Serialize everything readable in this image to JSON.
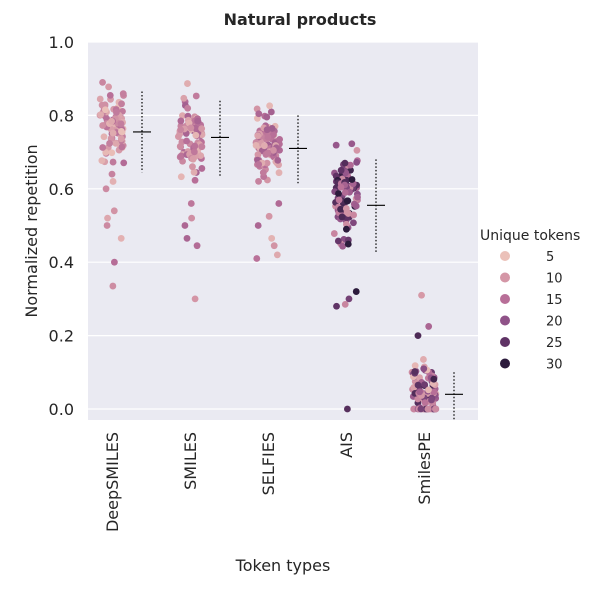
{
  "chart_data": {
    "type": "strip",
    "title": "Natural products",
    "xlabel": "Token types",
    "ylabel": "Normalized repetition",
    "ylim": [
      -0.03,
      1.0
    ],
    "yticks": [
      0.0,
      0.2,
      0.4,
      0.6,
      0.8,
      1.0
    ],
    "ytick_labels": [
      "0.0",
      "0.2",
      "0.4",
      "0.6",
      "0.8",
      "1.0"
    ],
    "grid": true,
    "categories": [
      "DeepSMILES",
      "SMILES",
      "SELFIES",
      "AIS",
      "SmilesPE"
    ],
    "summary": [
      {
        "category": "DeepSMILES",
        "mean": 0.755,
        "lower": 0.645,
        "upper": 0.865
      },
      {
        "category": "SMILES",
        "mean": 0.74,
        "lower": 0.635,
        "upper": 0.84
      },
      {
        "category": "SELFIES",
        "mean": 0.71,
        "lower": 0.615,
        "upper": 0.8
      },
      {
        "category": "AIS",
        "mean": 0.555,
        "lower": 0.425,
        "upper": 0.68
      },
      {
        "category": "SmilesPE",
        "mean": 0.04,
        "lower": -0.03,
        "upper": 0.1
      }
    ],
    "points": [
      {
        "category": "DeepSMILES",
        "distribution": {
          "center": 0.77,
          "spread": 0.07,
          "min": 0.6,
          "max": 0.93,
          "count": 90
        },
        "outliers": [
          0.64,
          0.62,
          0.6,
          0.54,
          0.52,
          0.5,
          0.465,
          0.4,
          0.335
        ],
        "token_range": [
          5,
          16
        ]
      },
      {
        "category": "SMILES",
        "distribution": {
          "center": 0.75,
          "spread": 0.07,
          "min": 0.58,
          "max": 0.9,
          "count": 90
        },
        "outliers": [
          0.56,
          0.52,
          0.5,
          0.465,
          0.445,
          0.3
        ],
        "token_range": [
          6,
          18
        ]
      },
      {
        "category": "SELFIES",
        "distribution": {
          "center": 0.72,
          "spread": 0.065,
          "min": 0.58,
          "max": 0.87,
          "count": 90
        },
        "outliers": [
          0.56,
          0.525,
          0.5,
          0.465,
          0.445,
          0.42,
          0.41
        ],
        "token_range": [
          6,
          18
        ]
      },
      {
        "category": "AIS",
        "distribution": {
          "center": 0.56,
          "spread": 0.09,
          "min": 0.33,
          "max": 0.77,
          "count": 100
        },
        "outliers": [
          0.32,
          0.3,
          0.285,
          0.28,
          0.0
        ],
        "token_range": [
          10,
          32
        ]
      },
      {
        "category": "SmilesPE",
        "distribution": {
          "center": 0.06,
          "spread": 0.05,
          "min": 0.0,
          "max": 0.22,
          "count": 70
        },
        "outliers": [
          0.31,
          0.225,
          0.2
        ],
        "zeros": 20,
        "token_range": [
          5,
          28
        ]
      }
    ],
    "legend": {
      "title": "Unique tokens",
      "placement": "right",
      "entries": [
        {
          "label": "5",
          "value": 5,
          "color": "#ebc1b9"
        },
        {
          "label": "10",
          "value": 10,
          "color": "#d496a6"
        },
        {
          "label": "15",
          "value": 15,
          "color": "#b86f98"
        },
        {
          "label": "20",
          "value": 20,
          "color": "#8f5288"
        },
        {
          "label": "25",
          "value": 25,
          "color": "#5f3365"
        },
        {
          "label": "30",
          "value": 30,
          "color": "#2c1b3c"
        }
      ]
    },
    "colors": {
      "background": "#eaeaf2",
      "grid": "#ffffff",
      "summary_line": "#000000"
    }
  }
}
